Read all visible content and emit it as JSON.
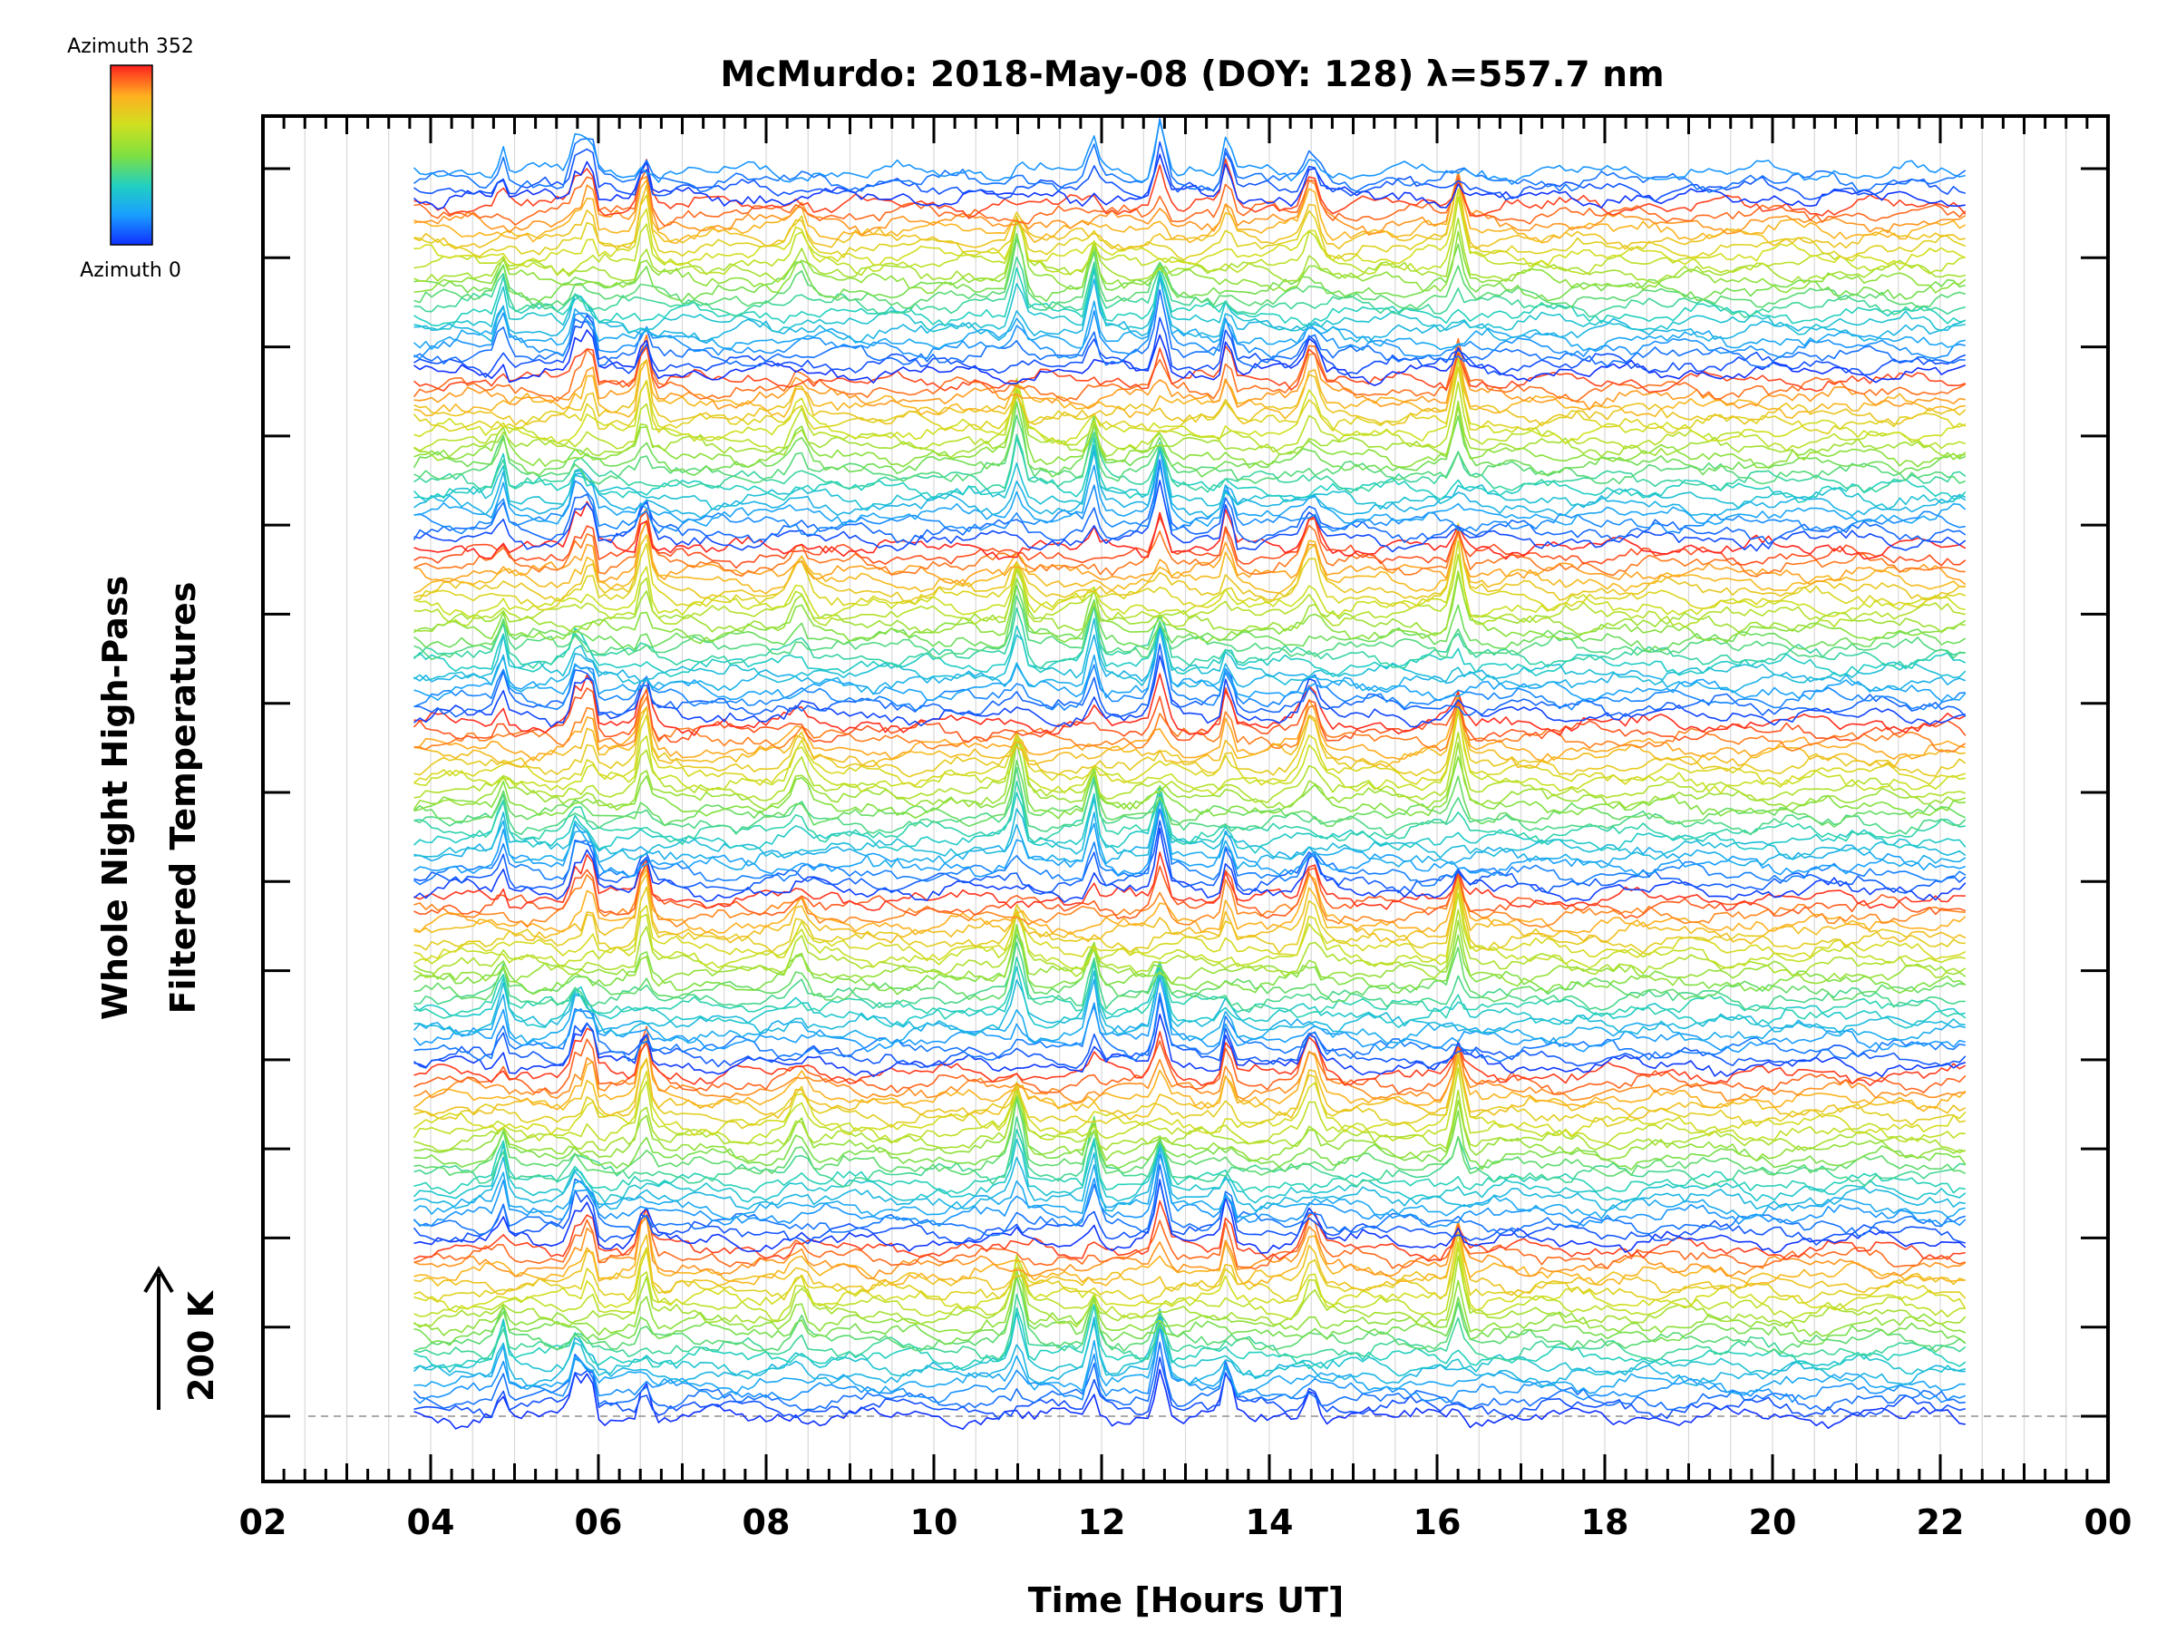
{
  "chart_data": {
    "type": "line",
    "title": "McMurdo: 2018-May-08 (DOY: 128) λ=557.7 nm",
    "xlabel": "Time [Hours UT]",
    "ylabel_line1": "Whole Night High-Pass",
    "ylabel_line2": "Filtered Temperatures",
    "scale_label": "200 K",
    "xlim": [
      2,
      24
    ],
    "x_start": 3.8,
    "x_end": 22.3,
    "x_tick_labels": [
      "02",
      "04",
      "06",
      "08",
      "10",
      "12",
      "14",
      "16",
      "18",
      "20",
      "22",
      "00"
    ],
    "y_tick_count": 15,
    "legend": {
      "max_label": "Azimuth 352",
      "min_label": "Azimuth 0",
      "azimuth_range": [
        0,
        352
      ]
    },
    "series_count": 150,
    "series_description": "Offset stacked temperature traces, one per azimuth; colour encodes azimuth 0 (blue) to 352 (red)",
    "event_times": [
      4.85,
      5.75,
      5.9,
      6.55,
      8.4,
      11.0,
      11.9,
      12.7,
      13.5,
      14.5,
      16.25
    ]
  },
  "colors": {
    "axis": "#000000",
    "grid": "#d8d8d8",
    "baseline": "#aaaaaa",
    "colormap": [
      "#1030ff",
      "#1aa0ff",
      "#22d0c0",
      "#80e040",
      "#d0e020",
      "#ffb020",
      "#ff2020"
    ]
  }
}
